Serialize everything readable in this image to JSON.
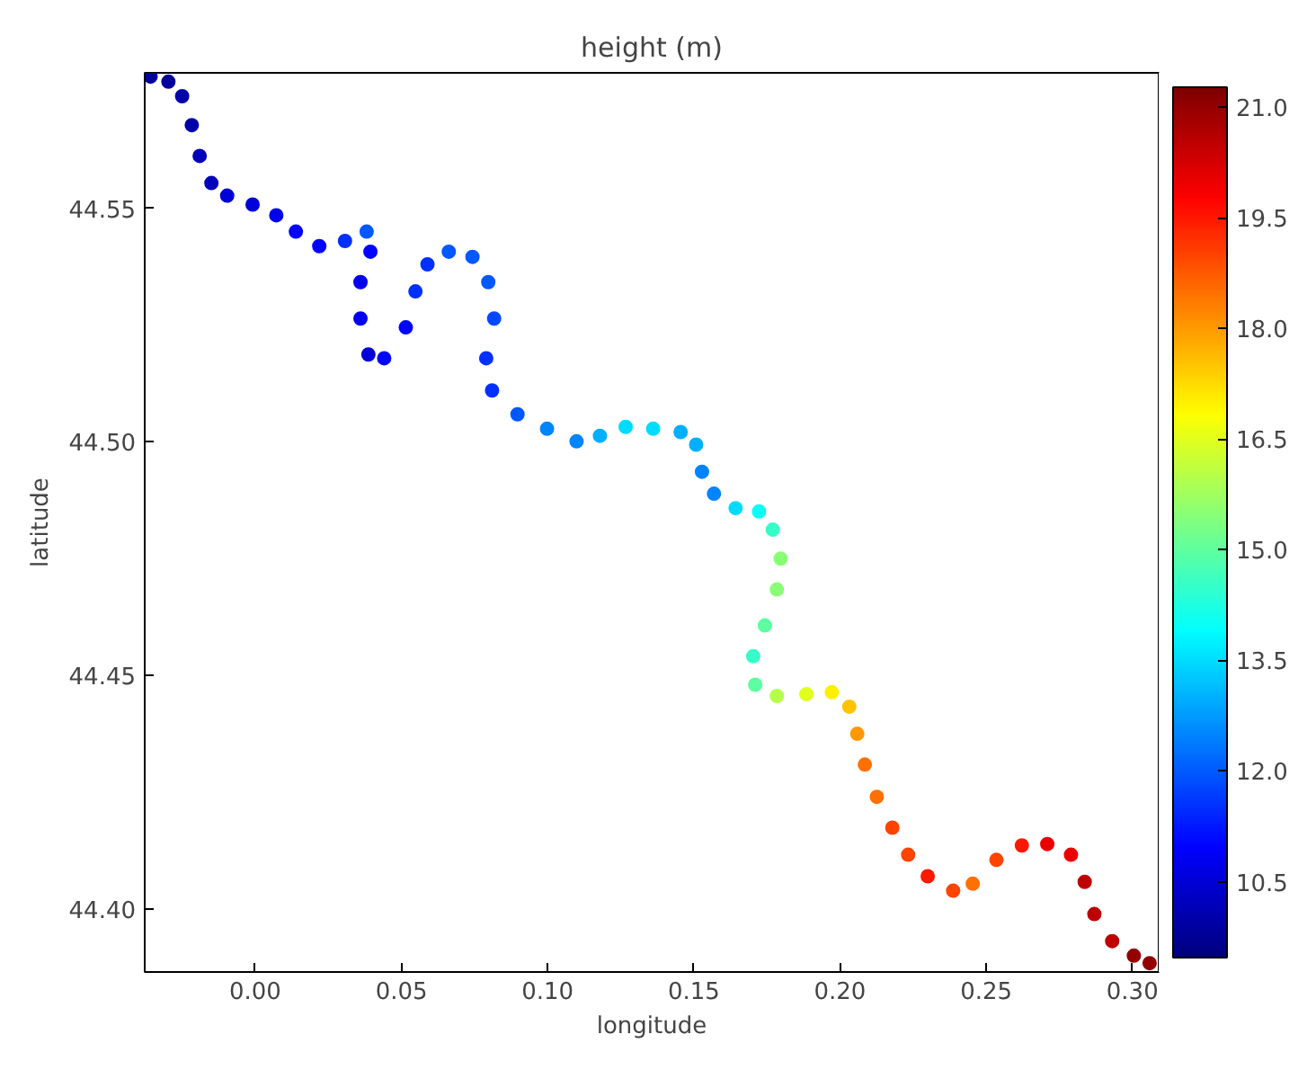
{
  "chart_data": {
    "type": "scatter",
    "title": "height (m)",
    "xlabel": "longitude",
    "ylabel": "latitude",
    "xlim": [
      -0.0378,
      0.309
    ],
    "ylim": [
      44.3865,
      44.579
    ],
    "xticks": [
      {
        "value": 0,
        "label": "0.00"
      },
      {
        "value": 0.05,
        "label": "0.05"
      },
      {
        "value": 0.1,
        "label": "0.10"
      },
      {
        "value": 0.15,
        "label": "0.15"
      },
      {
        "value": 0.2,
        "label": "0.20"
      },
      {
        "value": 0.25,
        "label": "0.25"
      },
      {
        "value": 0.3,
        "label": "0.30"
      }
    ],
    "yticks": [
      {
        "value": 44.4,
        "label": "44.40"
      },
      44.45,
      {
        "value": 44.5,
        "label": "44.50"
      },
      44.55
    ],
    "clim": [
      9.47,
      21.27
    ],
    "cticks": [
      10.5,
      {
        "value": 12,
        "label": "12.0"
      },
      13.5,
      {
        "value": 15,
        "label": "15.0"
      },
      16.5,
      {
        "value": 18,
        "label": "18.0"
      },
      19.5,
      {
        "value": 21,
        "label": "21.0"
      }
    ],
    "grid": false,
    "marker": "circle",
    "x": [
      -0.0358,
      -0.0297,
      -0.025,
      -0.0217,
      -0.019,
      -0.015,
      -0.0096,
      -0.0009,
      0.0072,
      0.0139,
      0.0219,
      0.0307,
      0.0381,
      0.0394,
      0.036,
      0.036,
      0.0387,
      0.0441,
      0.0515,
      0.0548,
      0.0589,
      0.0662,
      0.0743,
      0.0797,
      0.0817,
      0.079,
      0.081,
      0.0897,
      0.0998,
      0.1099,
      0.1179,
      0.1267,
      0.1361,
      0.1455,
      0.1508,
      0.1528,
      0.1569,
      0.1643,
      0.1723,
      0.177,
      0.1797,
      0.1784,
      0.1743,
      0.1703,
      0.171,
      0.1784,
      0.1885,
      0.1972,
      0.2032,
      0.2059,
      0.2085,
      0.2126,
      0.2179,
      0.2233,
      0.23,
      0.2387,
      0.2454,
      0.2535,
      0.2622,
      0.2709,
      0.279,
      0.2837,
      0.287,
      0.2931,
      0.3005,
      0.3059
    ],
    "values": [
      44.5782,
      44.5771,
      44.574,
      44.5678,
      44.5612,
      44.5554,
      44.5527,
      44.5508,
      44.5485,
      44.545,
      44.5419,
      44.543,
      44.545,
      44.5407,
      44.5342,
      44.5264,
      44.5187,
      44.5179,
      44.5245,
      44.5322,
      44.538,
      44.5407,
      44.5396,
      44.5342,
      44.5264,
      44.5179,
      44.511,
      44.5059,
      44.5028,
      44.5001,
      44.5013,
      44.5032,
      44.5028,
      44.5021,
      44.4994,
      44.4936,
      44.4889,
      44.4858,
      44.4851,
      44.4812,
      44.475,
      44.4684,
      44.4607,
      44.4541,
      44.448,
      44.4456,
      44.446,
      44.4464,
      44.4433,
      44.4375,
      44.4309,
      44.424,
      44.4174,
      44.4116,
      44.407,
      44.4039,
      44.4054,
      44.4105,
      44.4136,
      44.4139,
      44.4116,
      44.4058,
      44.3989,
      44.3931,
      44.39,
      44.3884
    ],
    "cvalues": [
      9.8,
      9.8,
      10.0,
      10.0,
      10.2,
      10.2,
      10.5,
      10.5,
      10.8,
      11.0,
      11.0,
      11.5,
      12.0,
      11.0,
      10.8,
      10.8,
      10.5,
      11.0,
      11.0,
      11.5,
      11.5,
      12.0,
      12.0,
      12.0,
      11.8,
      11.5,
      11.5,
      12.0,
      12.5,
      12.5,
      13.0,
      13.5,
      13.5,
      13.0,
      13.0,
      12.5,
      12.5,
      13.5,
      14.0,
      14.5,
      15.5,
      15.5,
      15.0,
      14.5,
      15.0,
      16.0,
      16.5,
      17.0,
      17.5,
      18.0,
      18.5,
      18.5,
      19.0,
      19.0,
      19.5,
      19.0,
      18.5,
      19.0,
      19.5,
      20.0,
      20.0,
      20.5,
      20.5,
      20.5,
      21.0,
      21.0
    ]
  }
}
